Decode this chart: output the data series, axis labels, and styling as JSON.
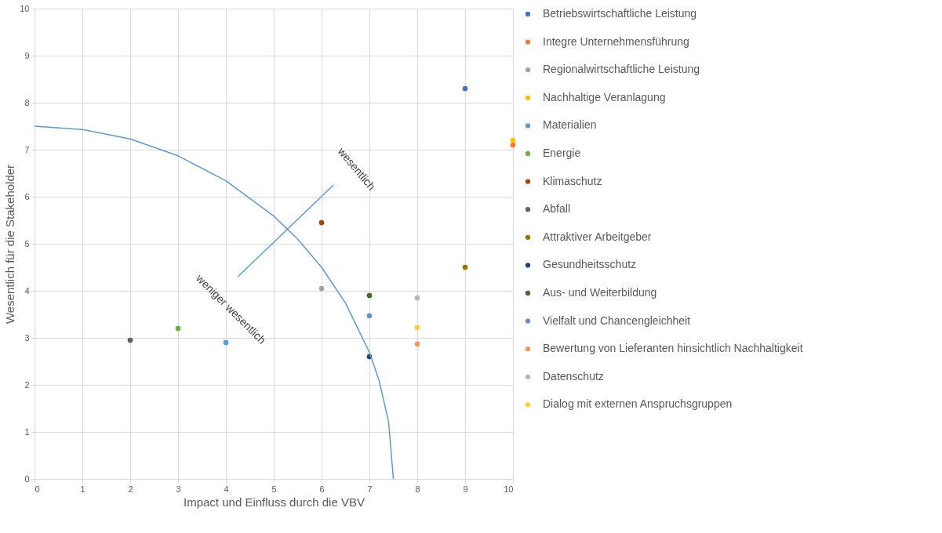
{
  "chart_data": {
    "type": "scatter",
    "xlabel": "Impact und Einfluss durch die VBV",
    "ylabel": "Wesentlich für die Stakeholder",
    "xlim": [
      0,
      10
    ],
    "ylim": [
      0,
      10
    ],
    "xticks": [
      0,
      1,
      2,
      3,
      4,
      5,
      6,
      7,
      8,
      9,
      10
    ],
    "yticks": [
      0,
      1,
      2,
      3,
      4,
      5,
      6,
      7,
      8,
      9,
      10
    ],
    "grid": true,
    "legend": "right",
    "marker": "circle",
    "series": [
      {
        "name": "Betriebswirtschaftliche Leistung",
        "color": "#4472c4",
        "x": [
          9
        ],
        "values": [
          8.3
        ]
      },
      {
        "name": "Integre Unternehmensführung",
        "color": "#ed7d31",
        "x": [
          10
        ],
        "values": [
          7.1
        ]
      },
      {
        "name": "Regionalwirtschaftliche Leistung",
        "color": "#a5a5a5",
        "x": [
          6
        ],
        "values": [
          4.05
        ]
      },
      {
        "name": "Nachhaltige Veranlagung",
        "color": "#ffc000",
        "x": [
          10
        ],
        "values": [
          7.2
        ]
      },
      {
        "name": "Materialien",
        "color": "#5b9bd5",
        "x": [
          4
        ],
        "values": [
          2.9
        ]
      },
      {
        "name": "Energie",
        "color": "#70ad47",
        "x": [
          3
        ],
        "values": [
          3.2
        ]
      },
      {
        "name": "Klimaschutz",
        "color": "#9e480e",
        "x": [
          6
        ],
        "values": [
          5.45
        ]
      },
      {
        "name": "Abfall",
        "color": "#636363",
        "x": [
          2
        ],
        "values": [
          2.95
        ]
      },
      {
        "name": "Attraktiver Arbeitgeber",
        "color": "#997300",
        "x": [
          9
        ],
        "values": [
          4.5
        ]
      },
      {
        "name": "Gesundheitsschutz",
        "color": "#264478",
        "x": [
          7
        ],
        "values": [
          2.6
        ]
      },
      {
        "name": "Aus- und Weiterbildung",
        "color": "#43682b",
        "x": [
          7
        ],
        "values": [
          3.9
        ]
      },
      {
        "name": "Vielfalt und Chancengleichheit",
        "color": "#698ed0",
        "x": [
          7
        ],
        "values": [
          3.47
        ]
      },
      {
        "name": "Bewertung von Lieferanten hinsichtlich Nachhaltigkeit",
        "color": "#f1975a",
        "x": [
          8
        ],
        "values": [
          2.87
        ]
      },
      {
        "name": "Datenschutz",
        "color": "#b7b7b7",
        "x": [
          8
        ],
        "values": [
          3.85
        ]
      },
      {
        "name": "Dialog mit externen Anspruchsgruppen",
        "color": "#ffcd33",
        "x": [
          8
        ],
        "values": [
          3.22
        ]
      },
      {
        "type": "line",
        "color": "#5b9bd5",
        "marker": "none",
        "x": [
          0,
          1,
          2,
          3,
          4,
          5,
          5.5,
          6,
          6.5,
          7,
          7.2,
          7.4,
          7.5
        ],
        "values": [
          7.5,
          7.43,
          7.23,
          6.87,
          6.34,
          5.59,
          5.1,
          4.5,
          3.74,
          2.69,
          2.1,
          1.22,
          0
        ]
      },
      {
        "type": "line",
        "color": "#5b9bd5",
        "marker": "none",
        "x": [
          4.25,
          6.25
        ],
        "values": [
          4.3,
          6.25
        ]
      }
    ],
    "annotations": [
      "wesentlich",
      "weniger wesentlich"
    ]
  }
}
